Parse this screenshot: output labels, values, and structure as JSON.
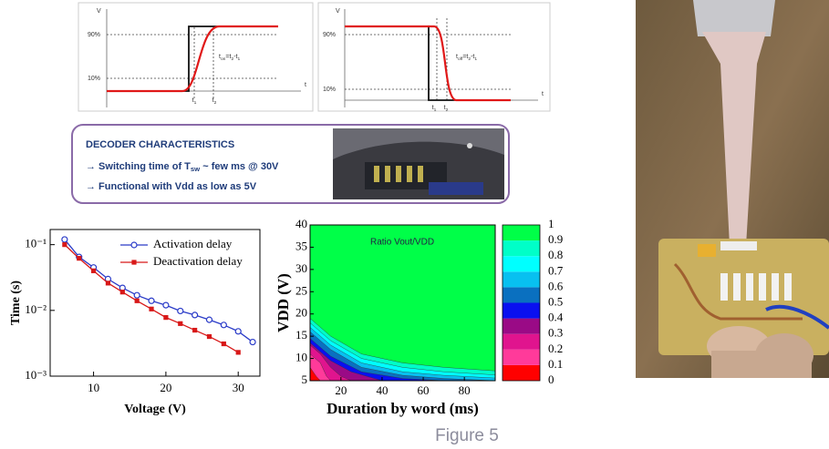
{
  "waveforms": [
    {
      "v_label": "V",
      "t_label": "t",
      "levels": [
        "90%",
        "10%"
      ],
      "t_marks": [
        [
          "t",
          "1"
        ],
        [
          "t",
          "2"
        ]
      ],
      "formula": [
        "t",
        "on",
        "=t",
        "2",
        "-t",
        "1"
      ]
    },
    {
      "v_label": "V",
      "t_label": "t",
      "levels": [
        "90%",
        "10%"
      ],
      "t_marks": [
        [
          "t",
          "1"
        ],
        [
          "t",
          "2"
        ]
      ],
      "formula": [
        "t",
        "off",
        "=t",
        "2",
        "-t",
        "1"
      ]
    }
  ],
  "decoder": {
    "heading": "DECODER CHARACTERISTICS",
    "lines": [
      [
        "→  Switching time of T",
        "sw",
        " ~ few ms @ 30V"
      ],
      [
        "→  Functional with Vdd as low as 5V"
      ]
    ]
  },
  "chart_data": [
    {
      "type": "line",
      "y_label": "Time (s)",
      "x_label": "Voltage (V)",
      "log_y": true,
      "xlim": [
        4,
        33
      ],
      "xticks": [
        10,
        20,
        30
      ],
      "ylim": [
        0.001,
        0.17
      ],
      "yticks": [
        {
          "value": 0.001,
          "label": "10⁻³"
        },
        {
          "value": 0.01,
          "label": "10⁻²"
        },
        {
          "value": 0.1,
          "label": "10⁻¹"
        }
      ],
      "legend": "upper right",
      "series": [
        {
          "name": "Activation delay",
          "color": "#2a3bc8",
          "marker": "open-circle",
          "x": [
            6,
            8,
            10,
            12,
            14,
            16,
            18,
            20,
            22,
            24,
            26,
            28,
            30,
            32
          ],
          "values": [
            0.12,
            0.065,
            0.045,
            0.03,
            0.022,
            0.017,
            0.014,
            0.012,
            0.0098,
            0.0085,
            0.0072,
            0.006,
            0.0048,
            0.0033
          ]
        },
        {
          "name": "Deactivation delay",
          "color": "#d81818",
          "marker": "filled-square",
          "x": [
            6,
            8,
            10,
            12,
            14,
            16,
            18,
            20,
            22,
            24,
            26,
            28,
            30
          ],
          "values": [
            0.1,
            0.062,
            0.04,
            0.026,
            0.019,
            0.014,
            0.0105,
            0.0078,
            0.0063,
            0.005,
            0.004,
            0.0031,
            0.0023
          ]
        }
      ]
    },
    {
      "type": "contour",
      "title": "Ratio Vout/VDD",
      "x_label": "Duration by word (ms)",
      "y_label": "VDD (V)",
      "xlim": [
        5,
        95
      ],
      "xticks": [
        20,
        40,
        60,
        80
      ],
      "ylim": [
        5,
        40
      ],
      "yticks": [
        5,
        10,
        15,
        20,
        25,
        30,
        35,
        40
      ],
      "colorbar_ticks": [
        0,
        0.1,
        0.2,
        0.3,
        0.4,
        0.5,
        0.6,
        0.7,
        0.8,
        0.9,
        1
      ],
      "colors": [
        "#ff0000",
        "#ff3a9a",
        "#e0148e",
        "#9a0a86",
        "#0a10f0",
        "#0a70c0",
        "#08c0f0",
        "#00ffff",
        "#00ffc8",
        "#00ff48"
      ],
      "contours": [
        {
          "x": [
            5,
            8,
            10
          ],
          "y": [
            8,
            6,
            5
          ]
        },
        {
          "x": [
            5,
            10,
            13,
            15
          ],
          "y": [
            11,
            9,
            6,
            5
          ]
        },
        {
          "x": [
            5,
            10,
            15,
            20,
            25
          ],
          "y": [
            13,
            11,
            8,
            6,
            5
          ]
        },
        {
          "x": [
            5,
            15,
            25,
            40
          ],
          "y": [
            13.5,
            9.5,
            7,
            5
          ]
        },
        {
          "x": [
            5,
            15,
            30,
            50,
            70
          ],
          "y": [
            14.5,
            10.5,
            7,
            5.5,
            5
          ]
        },
        {
          "x": [
            5,
            15,
            30,
            50,
            70,
            95
          ],
          "y": [
            16,
            12,
            8,
            6.2,
            5.5,
            5
          ]
        },
        {
          "x": [
            5,
            15,
            30,
            50,
            70,
            95
          ],
          "y": [
            17,
            13,
            9,
            7,
            6.2,
            5.6
          ]
        },
        {
          "x": [
            5,
            15,
            30,
            50,
            70,
            95
          ],
          "y": [
            18,
            14,
            10,
            8,
            7,
            6.3
          ]
        },
        {
          "x": [
            5,
            15,
            30,
            50,
            70,
            95
          ],
          "y": [
            19,
            15,
            11,
            9,
            8,
            7.2
          ]
        }
      ]
    }
  ],
  "caption": "Figure 5"
}
